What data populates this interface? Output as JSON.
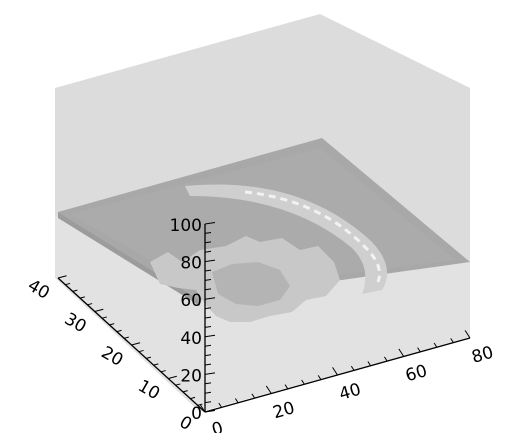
{
  "chart_data": {
    "type": "3d-surface",
    "title": "",
    "xlabel": "",
    "ylabel": "",
    "zlabel": "",
    "x_axis": {
      "range": [
        0,
        80
      ],
      "ticks": [
        0,
        20,
        40,
        60,
        80
      ],
      "labels": [
        "0",
        "20",
        "40",
        "60",
        "80"
      ]
    },
    "y_axis": {
      "range": [
        0,
        40
      ],
      "ticks": [
        0,
        10,
        20,
        30,
        40
      ],
      "labels": [
        "0",
        "10",
        "20",
        "30",
        "40"
      ]
    },
    "z_axis": {
      "range": [
        0,
        100
      ],
      "ticks": [
        0,
        20,
        40,
        60,
        80,
        100
      ],
      "labels": [
        "0",
        "20",
        "40",
        "60",
        "80",
        "100"
      ]
    },
    "colors": {
      "box_back": "#dcdcdc",
      "box_front": "#e2e2e2",
      "surface_base": "#a8a8a8",
      "surface_edge": "#9c9c9c",
      "blob_light": "#c8c8c8",
      "arc": "#cfcfcf",
      "arc_highlight": "#f2f2f2"
    }
  }
}
